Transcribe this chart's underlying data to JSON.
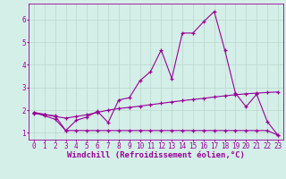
{
  "xlabel": "Windchill (Refroidissement éolien,°C)",
  "background_color": "#d4eee8",
  "grid_color": "#b8d8cc",
  "line_color": "#990099",
  "xlim": [
    -0.5,
    23.5
  ],
  "ylim": [
    0.7,
    6.7
  ],
  "xticks": [
    0,
    1,
    2,
    3,
    4,
    5,
    6,
    7,
    8,
    9,
    10,
    11,
    12,
    13,
    14,
    15,
    16,
    17,
    18,
    19,
    20,
    21,
    22,
    23
  ],
  "yticks": [
    1,
    2,
    3,
    4,
    5,
    6
  ],
  "line1_x": [
    0,
    1,
    2,
    3,
    4,
    5,
    6,
    7,
    8,
    9,
    10,
    11,
    12,
    13,
    14,
    15,
    16,
    17,
    18,
    19,
    20,
    21,
    22,
    23
  ],
  "line1_y": [
    1.9,
    1.75,
    1.6,
    1.1,
    1.55,
    1.7,
    1.95,
    1.45,
    2.45,
    2.55,
    3.3,
    3.7,
    4.65,
    3.4,
    5.4,
    5.4,
    5.9,
    6.35,
    4.65,
    2.75,
    2.15,
    2.7,
    1.5,
    0.9
  ],
  "line2_x": [
    0,
    1,
    2,
    3,
    4,
    5,
    6,
    7,
    8,
    9,
    10,
    11,
    12,
    13,
    14,
    15,
    16,
    17,
    18,
    19,
    20,
    21,
    22,
    23
  ],
  "line2_y": [
    1.9,
    1.82,
    1.72,
    1.65,
    1.72,
    1.8,
    1.9,
    2.0,
    2.07,
    2.12,
    2.18,
    2.24,
    2.3,
    2.36,
    2.42,
    2.47,
    2.52,
    2.58,
    2.63,
    2.68,
    2.72,
    2.75,
    2.78,
    2.8
  ],
  "line3_x": [
    0,
    1,
    2,
    3,
    4,
    5,
    6,
    7,
    8,
    9,
    10,
    11,
    12,
    13,
    14,
    15,
    16,
    17,
    18,
    19,
    20,
    21,
    22,
    23
  ],
  "line3_y": [
    1.85,
    1.8,
    1.75,
    1.1,
    1.1,
    1.1,
    1.1,
    1.1,
    1.1,
    1.1,
    1.1,
    1.1,
    1.1,
    1.1,
    1.1,
    1.1,
    1.1,
    1.1,
    1.1,
    1.1,
    1.1,
    1.1,
    1.1,
    0.9
  ],
  "xlabel_fontsize": 6.5,
  "tick_fontsize": 5.5
}
